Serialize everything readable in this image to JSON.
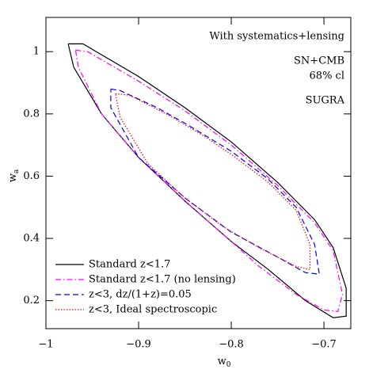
{
  "chart_data": {
    "type": "contour",
    "xlabel": "w",
    "xlabel_subscript": "0",
    "ylabel": "w",
    "ylabel_subscript": "a",
    "annotations": [
      "With systematics+lensing",
      "SN+CMB",
      "68% cl",
      "SUGRA"
    ],
    "xlim": [
      -1,
      -0.671
    ],
    "ylim": [
      0.11,
      1.11
    ],
    "xticks": [
      {
        "value": -1,
        "label": "−1"
      },
      {
        "value": -0.9,
        "label": "−0.9"
      },
      {
        "value": -0.8,
        "label": "−0.8"
      },
      {
        "value": -0.7,
        "label": "−0.7"
      }
    ],
    "yticks": [
      0.2,
      0.4,
      0.6,
      0.8,
      1
    ],
    "legend": "lower left",
    "series": [
      {
        "name": "Standard z<1.7",
        "color": "#000000",
        "dash": "solid",
        "x": [
          -0.976,
          -0.96,
          -0.9,
          -0.85,
          -0.8,
          -0.75,
          -0.71,
          -0.69,
          -0.676,
          -0.676,
          -0.69,
          -0.72,
          -0.76,
          -0.8,
          -0.85,
          -0.9,
          -0.94,
          -0.97,
          -0.976
        ],
        "values": [
          1.025,
          1.025,
          0.92,
          0.82,
          0.71,
          0.58,
          0.46,
          0.37,
          0.24,
          0.15,
          0.145,
          0.2,
          0.3,
          0.39,
          0.52,
          0.66,
          0.8,
          0.95,
          1.025
        ]
      },
      {
        "name": "Standard z<1.7 (no lensing)",
        "color": "#ff00ff",
        "dash": "dashdot",
        "x": [
          -0.968,
          -0.955,
          -0.9,
          -0.85,
          -0.8,
          -0.75,
          -0.71,
          -0.69,
          -0.68,
          -0.685,
          -0.7,
          -0.73,
          -0.77,
          -0.8,
          -0.85,
          -0.9,
          -0.94,
          -0.965,
          -0.968
        ],
        "values": [
          1.005,
          1.0,
          0.905,
          0.81,
          0.7,
          0.57,
          0.45,
          0.36,
          0.22,
          0.165,
          0.17,
          0.22,
          0.31,
          0.39,
          0.52,
          0.66,
          0.8,
          0.95,
          1.005
        ]
      },
      {
        "name": "z<3, dz/(1+z)=0.05",
        "color": "#0000ff",
        "dash": "dashed",
        "x": [
          -0.93,
          -0.92,
          -0.88,
          -0.85,
          -0.8,
          -0.76,
          -0.73,
          -0.71,
          -0.705,
          -0.72,
          -0.75,
          -0.8,
          -0.85,
          -0.9,
          -0.93,
          -0.93
        ],
        "values": [
          0.88,
          0.875,
          0.82,
          0.77,
          0.68,
          0.59,
          0.5,
          0.38,
          0.285,
          0.29,
          0.34,
          0.42,
          0.53,
          0.66,
          0.82,
          0.88
        ]
      },
      {
        "name": "z<3, Ideal spectroscopic",
        "color": "#ff0000",
        "dash": "dotted",
        "x": [
          -0.925,
          -0.91,
          -0.87,
          -0.83,
          -0.8,
          -0.76,
          -0.73,
          -0.715,
          -0.715,
          -0.73,
          -0.77,
          -0.81,
          -0.85,
          -0.89,
          -0.92,
          -0.925
        ],
        "values": [
          0.865,
          0.86,
          0.8,
          0.73,
          0.67,
          0.58,
          0.49,
          0.38,
          0.3,
          0.31,
          0.37,
          0.44,
          0.53,
          0.64,
          0.79,
          0.865
        ]
      }
    ]
  }
}
